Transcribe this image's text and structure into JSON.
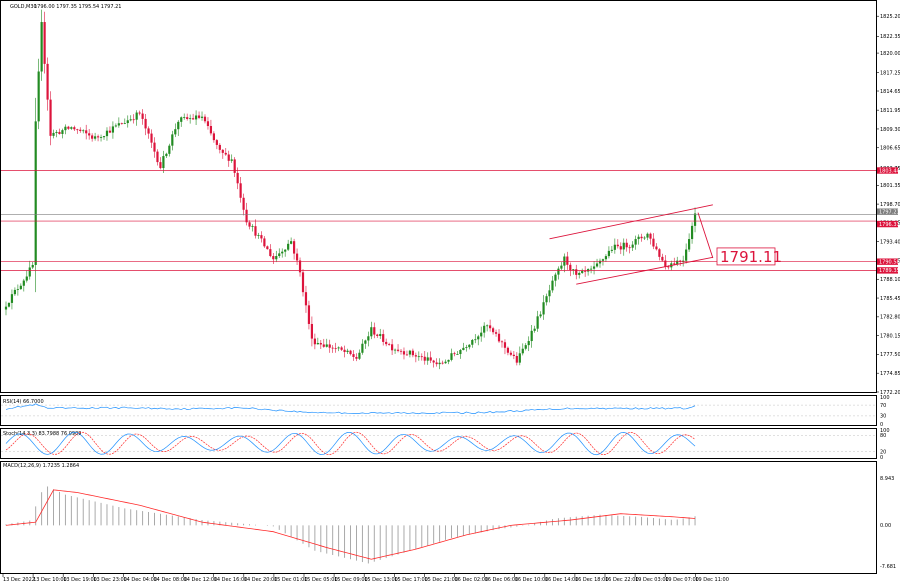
{
  "header": {
    "symbol_label": "GOLD,M30",
    "ohlc": "1796.00 1797.35 1795.54 1797.21"
  },
  "colors": {
    "bull": "#228b22",
    "bear": "#dc143c",
    "level": "#dc143c",
    "macd_signal": "#ff2a2a",
    "rsi": "#1e90ff",
    "stoch_main": "#1e90ff",
    "stoch_signal": "#ff2a2a",
    "histogram": "#a0a0a0"
  },
  "chart_data": [
    {
      "type": "candlestick",
      "title": "GOLD,M30",
      "ylim": [
        1772.2,
        1826.5
      ],
      "y_ticks": [
        "1825.20",
        "1822.35",
        "1820.00",
        "1817.25",
        "1814.65",
        "1811.95",
        "1809.30",
        "1806.65",
        "1803.75",
        "1801.35",
        "1798.70",
        "1796.05",
        "1793.40",
        "1790.75",
        "1788.10",
        "1785.45",
        "1782.80",
        "1780.15",
        "1777.50",
        "1774.85",
        "1772.20"
      ],
      "x_labels": [
        "13 Dec 2022",
        "13 Dec 10:00",
        "13 Dec 19:00",
        "13 Dec 23:00",
        "14 Dec 04:00",
        "14 Dec 08:00",
        "14 Dec 12:00",
        "14 Dec 16:00",
        "14 Dec 20:00",
        "15 Dec 01:00",
        "15 Dec 05:00",
        "15 Dec 09:00",
        "15 Dec 13:00",
        "15 Dec 17:00",
        "15 Dec 21:00",
        "16 Dec 02:00",
        "16 Dec 06:00",
        "16 Dec 10:00",
        "16 Dec 14:00",
        "16 Dec 18:00",
        "16 Dec 22:00",
        "19 Dec 03:00",
        "19 Dec 07:00",
        "19 Dec 11:00"
      ],
      "anchors_close": [
        [
          0,
          1784.6
        ],
        [
          5,
          1787.5
        ],
        [
          9,
          1790.0
        ],
        [
          10,
          1810.0
        ],
        [
          12,
          1824.0
        ],
        [
          15,
          1808.5
        ],
        [
          22,
          1809.5
        ],
        [
          30,
          1808.0
        ],
        [
          45,
          1811.5
        ],
        [
          52,
          1804.0
        ],
        [
          58,
          1810.5
        ],
        [
          66,
          1811.0
        ],
        [
          72,
          1806.0
        ],
        [
          76,
          1805.0
        ],
        [
          81,
          1796.5
        ],
        [
          90,
          1791.0
        ],
        [
          96,
          1793.5
        ],
        [
          99,
          1789.0
        ],
        [
          103,
          1779.5
        ],
        [
          113,
          1778.0
        ],
        [
          118,
          1777.0
        ],
        [
          123,
          1781.0
        ],
        [
          130,
          1778.5
        ],
        [
          137,
          1777.5
        ],
        [
          146,
          1776.0
        ],
        [
          154,
          1778.5
        ],
        [
          162,
          1781.5
        ],
        [
          172,
          1776.5
        ],
        [
          178,
          1781.5
        ],
        [
          184,
          1787.5
        ],
        [
          188,
          1791.0
        ],
        [
          192,
          1788.5
        ],
        [
          198,
          1789.5
        ],
        [
          204,
          1792.5
        ],
        [
          210,
          1793.0
        ],
        [
          216,
          1794.5
        ],
        [
          222,
          1790.0
        ],
        [
          228,
          1791.0
        ],
        [
          232,
          1797.2
        ]
      ],
      "price_labels": [
        "1803.44",
        "1797.21",
        "1796.31",
        "1790.58",
        "1789.35"
      ],
      "annotation": "1791.11",
      "levels": [
        {
          "price": 1803.44,
          "color": "#dc143c"
        },
        {
          "price": 1797.21,
          "color": "#7f7f7f"
        },
        {
          "price": 1796.31,
          "color": "#dc143c"
        },
        {
          "price": 1790.58,
          "color": "#dc143c"
        },
        {
          "price": 1789.35,
          "color": "#dc143c"
        }
      ],
      "channel": {
        "upper": [
          [
            183,
            1793.8
          ],
          [
            238,
            1798.6
          ]
        ],
        "lower": [
          [
            192,
            1787.4
          ],
          [
            238,
            1791.2
          ]
        ]
      },
      "projection": [
        [
          233,
          1797.5
        ],
        [
          238,
          1791.1
        ]
      ]
    },
    {
      "type": "line",
      "title": "RSI(14) 66.7000",
      "ylim": [
        0,
        100
      ],
      "y_ticks": [
        "100",
        "70",
        "30",
        "0"
      ],
      "levels": [
        70,
        30
      ],
      "anchors": [
        [
          0,
          57
        ],
        [
          10,
          72
        ],
        [
          14,
          58
        ],
        [
          40,
          60
        ],
        [
          60,
          56
        ],
        [
          80,
          60
        ],
        [
          100,
          44
        ],
        [
          120,
          40
        ],
        [
          160,
          42
        ],
        [
          190,
          58
        ],
        [
          230,
          58
        ],
        [
          232,
          66.7
        ]
      ]
    },
    {
      "type": "line",
      "title": "Stoch(14,3,3) 83.7988 76.0909",
      "ylim": [
        0,
        100
      ],
      "y_ticks": [
        "100",
        "80",
        "20",
        "0"
      ],
      "levels": [
        80,
        20
      ]
    },
    {
      "type": "bar",
      "title": "MACD(12,26,9) 1.7235 1.2864",
      "ylim": [
        -7.681,
        8.943
      ],
      "y_ticks": [
        "8.943",
        "0.00",
        "-7.681"
      ],
      "macd_anchors": [
        [
          0,
          0.2
        ],
        [
          8,
          0.9
        ],
        [
          13,
          7.6
        ],
        [
          20,
          5.8
        ],
        [
          40,
          3.2
        ],
        [
          66,
          1.0
        ],
        [
          90,
          -0.2
        ],
        [
          104,
          -4.8
        ],
        [
          122,
          -7.2
        ],
        [
          135,
          -5.0
        ],
        [
          150,
          -2.4
        ],
        [
          165,
          -0.8
        ],
        [
          175,
          0.0
        ],
        [
          185,
          1.3
        ],
        [
          200,
          2.0
        ],
        [
          214,
          1.6
        ],
        [
          225,
          1.0
        ],
        [
          232,
          1.72
        ]
      ],
      "signal_anchors": [
        [
          0,
          0.0
        ],
        [
          10,
          0.6
        ],
        [
          16,
          6.7
        ],
        [
          24,
          6.2
        ],
        [
          45,
          3.8
        ],
        [
          66,
          0.6
        ],
        [
          90,
          -1.2
        ],
        [
          108,
          -4.2
        ],
        [
          123,
          -6.4
        ],
        [
          138,
          -4.5
        ],
        [
          155,
          -1.8
        ],
        [
          170,
          0.0
        ],
        [
          190,
          1.0
        ],
        [
          207,
          2.2
        ],
        [
          225,
          1.6
        ],
        [
          232,
          1.29
        ]
      ]
    }
  ]
}
